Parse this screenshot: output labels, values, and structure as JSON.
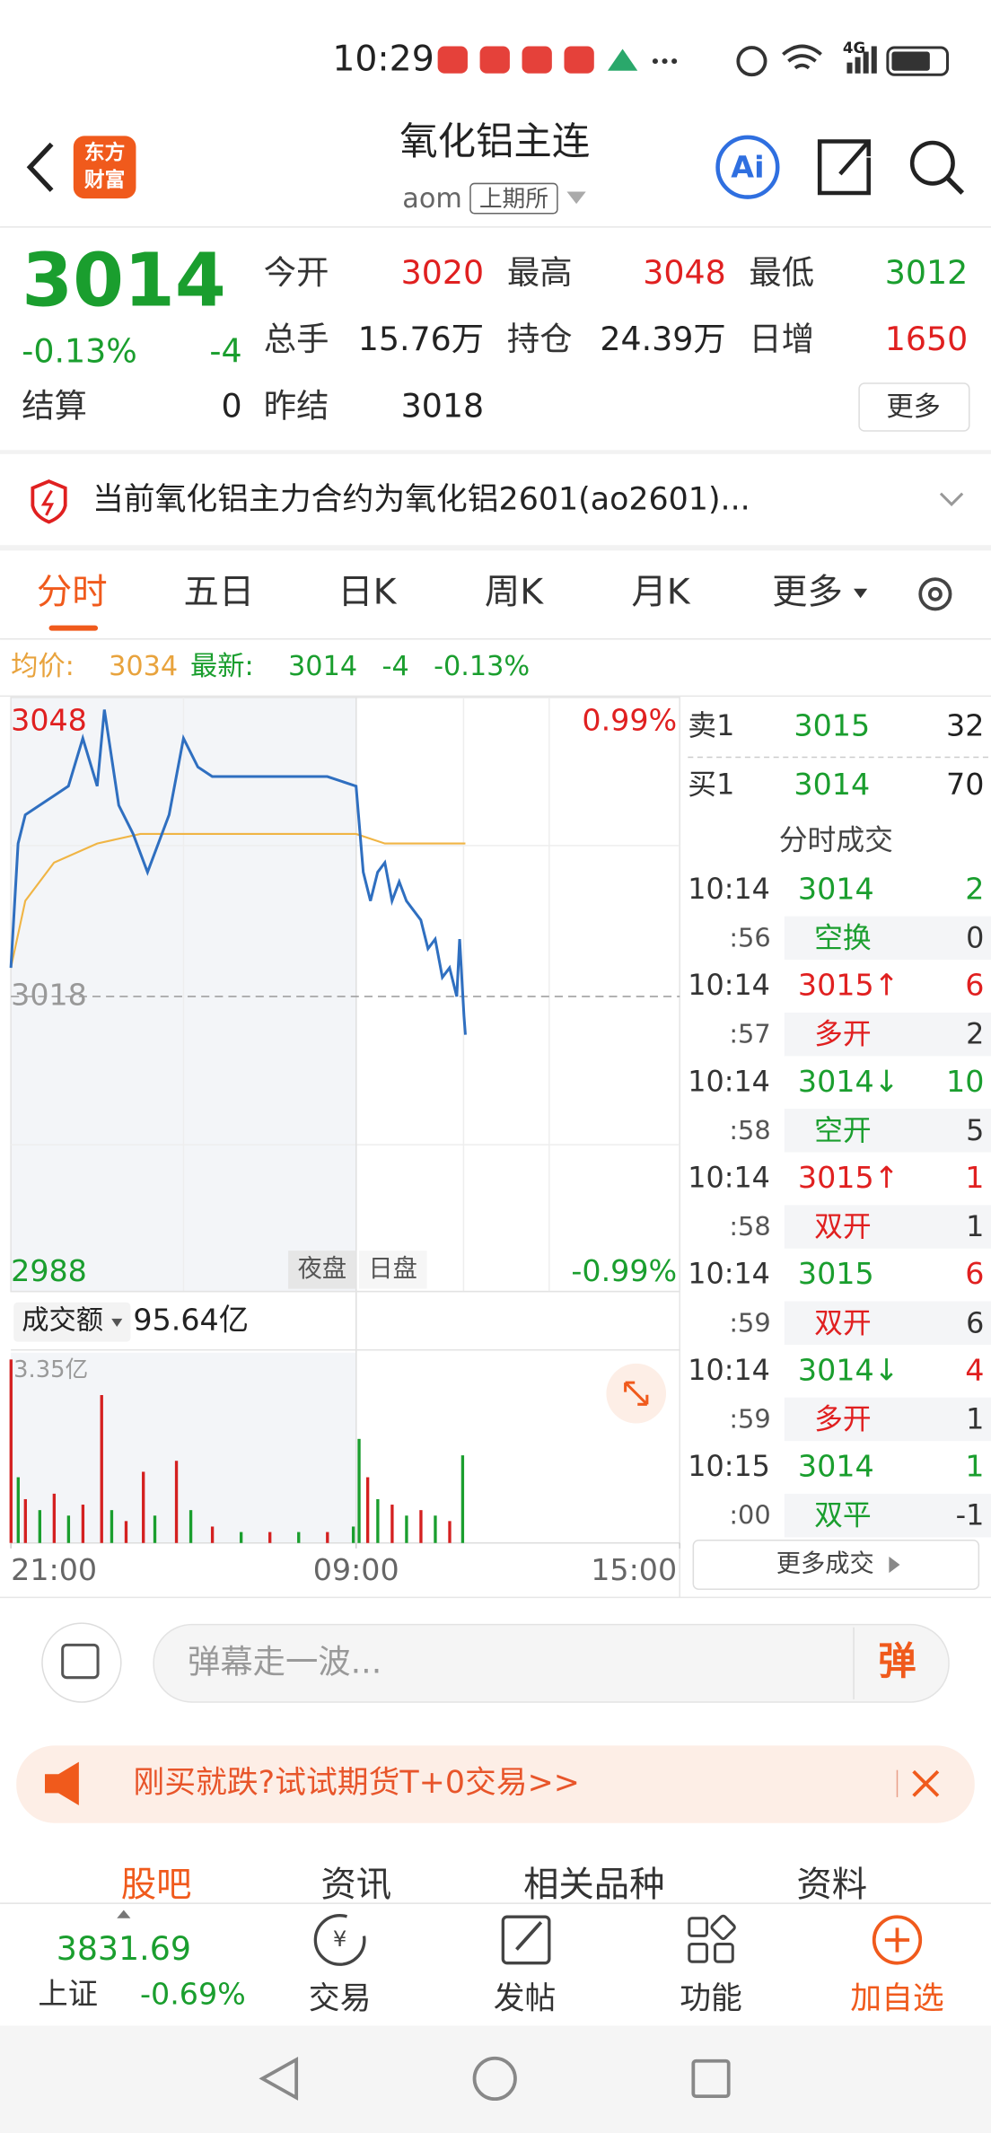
{
  "status_bar": {
    "time": "10:29",
    "network": "4G"
  },
  "header": {
    "logo": [
      "东方",
      "财富"
    ],
    "title": "氧化铝主连",
    "code": "aom",
    "exchange": "上期所",
    "ai": "Ai"
  },
  "quote": {
    "price": "3014",
    "change_pct": "-0.13%",
    "change": "-4",
    "fields": [
      {
        "label": "今开",
        "value": "3020",
        "color": "#e02020"
      },
      {
        "label": "最高",
        "value": "3048",
        "color": "#e02020"
      },
      {
        "label": "最低",
        "value": "3012",
        "color": "#1a9e2e"
      },
      {
        "label": "总手",
        "value": "15.76万",
        "color": "#222222"
      },
      {
        "label": "持仓",
        "value": "24.39万",
        "color": "#222222"
      },
      {
        "label": "日增",
        "value": "1650",
        "color": "#e02020"
      }
    ],
    "settle_label": "结算",
    "settle": "0",
    "prev_settle_label": "昨结",
    "prev_settle": "3018",
    "more": "更多"
  },
  "notice": "当前氧化铝主力合约为氧化铝2601(ao2601)...",
  "tabs": [
    "分时",
    "五日",
    "日K",
    "周K",
    "月K",
    "更多"
  ],
  "summary": {
    "avg_label": "均价:",
    "avg": "3034",
    "latest_label": "最新:",
    "latest": "3014",
    "change": "-4",
    "pct": "-0.13%"
  },
  "chart": {
    "type": "line",
    "xlim": [
      0,
      465
    ],
    "xticks": [
      {
        "value": 0,
        "label": "21:00"
      },
      {
        "value": 240,
        "label": "09:00"
      },
      {
        "value": 465,
        "label": "15:00"
      }
    ],
    "ylim": [
      2988,
      3048
    ],
    "ref": 3018,
    "high_pct": "0.99%",
    "low_pct": "-0.99%",
    "sessions": [
      "夜盘",
      "日盘"
    ],
    "price": {
      "color": "#2f6fc0",
      "x": [
        0,
        5,
        10,
        20,
        30,
        40,
        50,
        60,
        65,
        75,
        85,
        95,
        100,
        110,
        120,
        130,
        140,
        160,
        180,
        200,
        220,
        240,
        245,
        250,
        255,
        260,
        265,
        270,
        275,
        280,
        285,
        290,
        295,
        300,
        305,
        310,
        312,
        315,
        316
      ],
      "values": [
        3021,
        3034,
        3037,
        3038,
        3039,
        3040,
        3045,
        3040,
        3048,
        3038,
        3035,
        3031,
        3033,
        3037,
        3045,
        3042,
        3041,
        3041,
        3041,
        3041,
        3041,
        3040,
        3031,
        3028,
        3031,
        3032,
        3028,
        3030,
        3028,
        3027,
        3026,
        3023,
        3024,
        3020,
        3021,
        3018,
        3024,
        3016,
        3014
      ]
    },
    "avg": {
      "color": "#f0b545",
      "x": [
        0,
        10,
        30,
        60,
        90,
        120,
        180,
        240,
        260,
        300,
        316
      ],
      "values": [
        3021,
        3028,
        3032,
        3034,
        3035,
        3035,
        3035,
        3035,
        3034,
        3034,
        3034
      ]
    },
    "volume": {
      "label": "成交额",
      "total": "95.64亿",
      "ylim": [
        0,
        3.35
      ],
      "yticks": [
        {
          "value": 3.35,
          "label": "3.35亿"
        }
      ],
      "x": [
        0,
        5,
        10,
        20,
        30,
        40,
        50,
        63,
        70,
        80,
        92,
        100,
        115,
        125,
        140,
        160,
        180,
        200,
        220,
        238,
        242,
        248,
        255,
        265,
        275,
        285,
        295,
        305,
        314
      ],
      "values": [
        3.35,
        1.2,
        0.8,
        0.6,
        0.9,
        0.5,
        0.7,
        2.7,
        0.6,
        0.4,
        1.3,
        0.5,
        1.5,
        0.6,
        0.3,
        0.2,
        0.2,
        0.2,
        0.2,
        0.3,
        1.9,
        1.2,
        0.8,
        0.7,
        0.5,
        0.6,
        0.5,
        0.4,
        1.6
      ],
      "colors": [
        "#d42020",
        "#1a9e2e",
        "#d42020",
        "#1a9e2e",
        "#d42020",
        "#1a9e2e",
        "#d42020",
        "#d42020",
        "#1a9e2e",
        "#d42020",
        "#d42020",
        "#1a9e2e",
        "#d42020",
        "#1a9e2e",
        "#d42020",
        "#1a9e2e",
        "#d42020",
        "#1a9e2e",
        "#d42020",
        "#1a9e2e",
        "#1a9e2e",
        "#d42020",
        "#1a9e2e",
        "#d42020",
        "#1a9e2e",
        "#d42020",
        "#1a9e2e",
        "#d42020",
        "#1a9e2e"
      ]
    }
  },
  "order_book": [
    {
      "label": "卖1",
      "price": "3015",
      "qty": "32"
    },
    {
      "label": "买1",
      "price": "3014",
      "qty": "70"
    }
  ],
  "trades_title": "分时成交",
  "trades": [
    {
      "time": "10:14",
      "price": "3014",
      "vol": "2",
      "sec": ":56",
      "kind": "空换",
      "oi": "0",
      "price_color": "#1a9e2e",
      "vol_color": "#1a9e2e",
      "kind_color": "#1a9e2e"
    },
    {
      "time": "10:14",
      "price": "3015↑",
      "vol": "6",
      "sec": ":57",
      "kind": "多开",
      "oi": "2",
      "price_color": "#e02020",
      "vol_color": "#e02020",
      "kind_color": "#e02020"
    },
    {
      "time": "10:14",
      "price": "3014↓",
      "vol": "10",
      "sec": ":58",
      "kind": "空开",
      "oi": "5",
      "price_color": "#1a9e2e",
      "vol_color": "#1a9e2e",
      "kind_color": "#1a9e2e"
    },
    {
      "time": "10:14",
      "price": "3015↑",
      "vol": "1",
      "sec": ":58",
      "kind": "双开",
      "oi": "1",
      "price_color": "#e02020",
      "vol_color": "#e02020",
      "kind_color": "#e02020"
    },
    {
      "time": "10:14",
      "price": "3015",
      "vol": "6",
      "sec": ":59",
      "kind": "双开",
      "oi": "6",
      "price_color": "#1a9e2e",
      "vol_color": "#e02020",
      "kind_color": "#e02020"
    },
    {
      "time": "10:14",
      "price": "3014↓",
      "vol": "4",
      "sec": ":59",
      "kind": "多开",
      "oi": "1",
      "price_color": "#1a9e2e",
      "vol_color": "#e02020",
      "kind_color": "#e02020"
    },
    {
      "time": "10:15",
      "price": "3014",
      "vol": "1",
      "sec": ":00",
      "kind": "双平",
      "oi": "-1",
      "price_color": "#1a9e2e",
      "vol_color": "#1a9e2e",
      "kind_color": "#1a9e2e"
    }
  ],
  "more_trades": "更多成交",
  "comment": {
    "placeholder": "弹幕走一波...",
    "button": "弹"
  },
  "banner": "刚买就跌?试试期货T+0交易>>",
  "bottom_tabs": [
    "股吧",
    "资讯",
    "相关品种",
    "资料"
  ],
  "index": {
    "value": "3831.69",
    "name": "上证",
    "pct": "-0.69%"
  },
  "nav": [
    "交易",
    "发帖",
    "功能",
    "加自选"
  ]
}
